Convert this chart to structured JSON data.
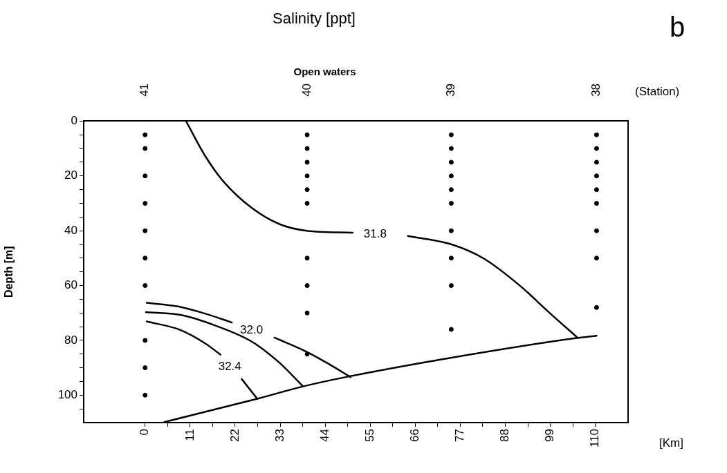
{
  "chart_data": {
    "type": "line",
    "title": "Salinity [ppt]",
    "xlabel": "[Km]",
    "ylabel": "Depth [m]",
    "x2label": "Open waters",
    "annotations": [
      "b",
      "(Station)",
      "41",
      "40",
      "39",
      "38"
    ],
    "xlim": [
      -15,
      118
    ],
    "ylim": [
      110,
      0
    ],
    "xticks": [
      0,
      {
        "value": 5.5,
        "label": null
      },
      11,
      {
        "value": 16.5,
        "label": null
      },
      22,
      {
        "value": 27.5,
        "label": null
      },
      33,
      {
        "value": 38.5,
        "label": null
      },
      44,
      {
        "value": 49.5,
        "label": null
      },
      55,
      {
        "value": 60.5,
        "label": null
      },
      66,
      {
        "value": 71.5,
        "label": null
      },
      77,
      {
        "value": 82.5,
        "label": null
      },
      88,
      {
        "value": 93.5,
        "label": null
      },
      99,
      {
        "value": 104.5,
        "label": null
      },
      110
    ],
    "yticks": [
      0,
      {
        "value": 5,
        "label": null
      },
      {
        "value": 10,
        "label": null
      },
      {
        "value": 15,
        "label": null
      },
      20,
      {
        "value": 25,
        "label": null
      },
      {
        "value": 30,
        "label": null
      },
      {
        "value": 35,
        "label": null
      },
      40,
      {
        "value": 45,
        "label": null
      },
      {
        "value": 50,
        "label": null
      },
      {
        "value": 55,
        "label": null
      },
      60,
      {
        "value": 65,
        "label": null
      },
      {
        "value": 70,
        "label": null
      },
      {
        "value": 75,
        "label": null
      },
      80,
      {
        "value": 85,
        "label": null
      },
      {
        "value": 90,
        "label": null
      },
      {
        "value": 95,
        "label": null
      },
      100,
      {
        "value": 105,
        "label": null
      }
    ],
    "grid": false,
    "legend": false,
    "line_style": "solid",
    "series": [
      {
        "type": "scatter",
        "marker": "circle",
        "color": "#000000",
        "x": [
          0,
          0,
          0,
          0,
          0,
          0,
          0,
          0,
          0,
          0
        ],
        "values": [
          5,
          10,
          20,
          30,
          40,
          50,
          60,
          80,
          90,
          100
        ]
      },
      {
        "type": "scatter",
        "marker": "circle",
        "color": "#000000",
        "x": [
          39.6,
          39.6,
          39.6,
          39.6,
          39.6,
          39.6,
          39.6,
          39.6,
          39.6,
          39.6
        ],
        "values": [
          5,
          10,
          15,
          20,
          25,
          30,
          50,
          60,
          70,
          85
        ]
      },
      {
        "type": "scatter",
        "marker": "circle",
        "color": "#000000",
        "x": [
          74.8,
          74.8,
          74.8,
          74.8,
          74.8,
          74.8,
          74.8,
          74.8,
          74.8,
          74.8
        ],
        "values": [
          5,
          10,
          15,
          20,
          25,
          30,
          40,
          50,
          60,
          76
        ]
      },
      {
        "type": "scatter",
        "marker": "circle",
        "color": "#000000",
        "x": [
          110.3,
          110.3,
          110.3,
          110.3,
          110.3,
          110.3,
          110.3,
          110.3,
          110.3
        ],
        "values": [
          5,
          10,
          15,
          20,
          25,
          30,
          40,
          50,
          68
        ]
      },
      {
        "type": "line",
        "name": "31.8",
        "marker": "none",
        "color": "#000000",
        "x": [
          10,
          14.8,
          19.3,
          26,
          32.7,
          39.5,
          50.7,
          56.2,
          64.2,
          74.9,
          82.7,
          91.7,
          98.4,
          105.7
        ],
        "values": [
          0,
          13,
          22.3,
          31.6,
          37.5,
          40,
          40.7,
          null,
          41.9,
          45,
          50.1,
          60.2,
          69.4,
          79.1
        ]
      },
      {
        "type": "line",
        "name": "32.0",
        "marker": "none",
        "color": "#000000",
        "x": [
          0.4,
          8.6,
          14.8,
          21.2,
          26,
          31.6,
          39.5,
          45.1,
          50.2
        ],
        "values": [
          66.3,
          67.8,
          70.3,
          73.5,
          null,
          79,
          84.2,
          88.8,
          93.4
        ]
      },
      {
        "type": "line",
        "marker": "none",
        "color": "#000000",
        "x": [
          0.2,
          8.6,
          17,
          26,
          32.7,
          38.6
        ],
        "values": [
          69.7,
          70.7,
          74.5,
          80.4,
          88,
          96.8
        ]
      },
      {
        "type": "line",
        "name": "32.4",
        "marker": "none",
        "color": "#000000",
        "x": [
          0.4,
          8.6,
          14.8,
          18.4,
          20.7,
          23.6,
          27.4
        ],
        "values": [
          73.1,
          76.2,
          81.2,
          85.2,
          null,
          94.1,
          101.3
        ]
      },
      {
        "type": "line",
        "marker": "none",
        "color": "#000000",
        "x": [
          4.7,
          27.4,
          38.6,
          49,
          74.9,
          105.7,
          110.3
        ],
        "values": [
          109.8,
          101.3,
          96.8,
          93.4,
          86.3,
          79.1,
          78.3
        ]
      }
    ]
  }
}
